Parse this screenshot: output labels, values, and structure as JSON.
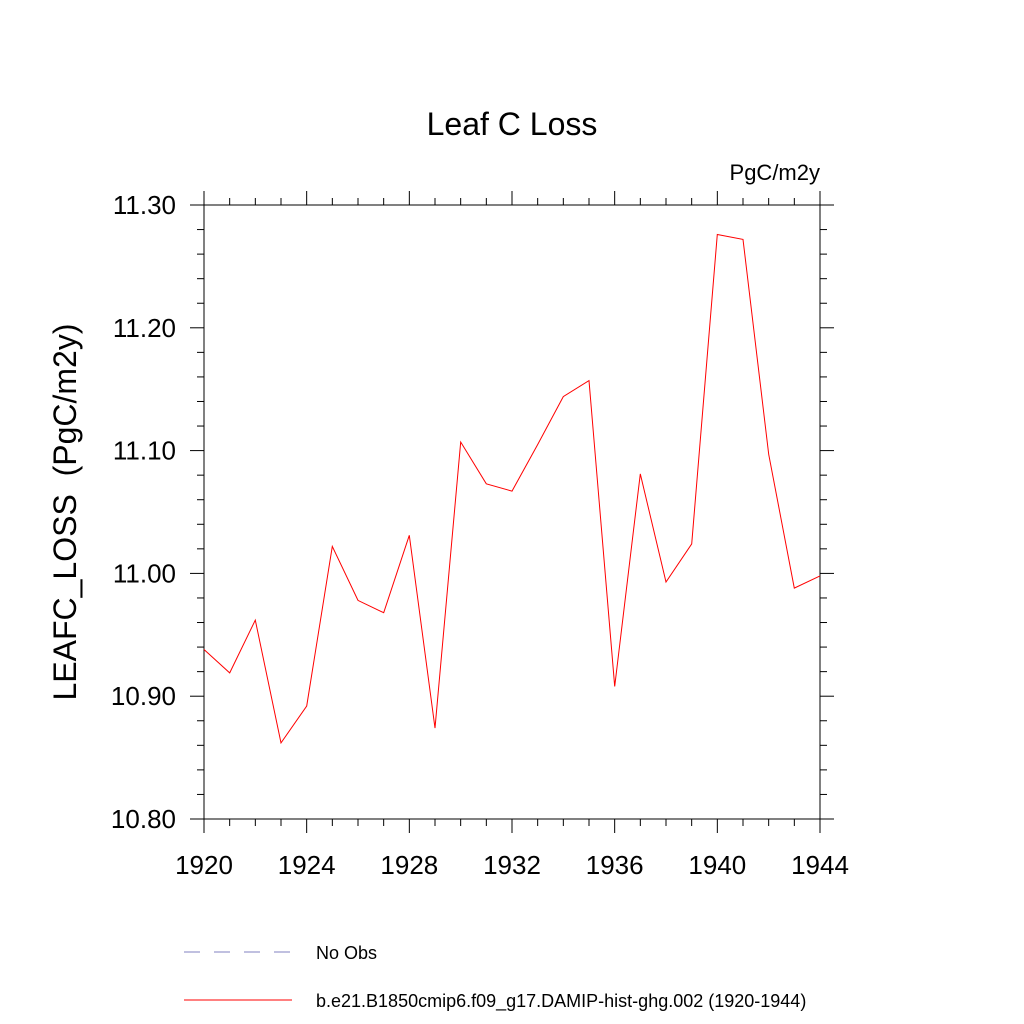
{
  "chart_data": {
    "type": "line",
    "title": "Leaf C Loss",
    "units_label": "PgC/m2y",
    "ylabel": "LEAFC_LOSS  (PgC/m2y)",
    "xlabel": "",
    "xlim": [
      1920,
      1944
    ],
    "ylim": [
      10.8,
      11.3
    ],
    "x_ticks": [
      1920,
      1924,
      1928,
      1932,
      1936,
      1940,
      1944
    ],
    "x_tick_labels": [
      "1920",
      "1924",
      "1928",
      "1932",
      "1936",
      "1940",
      "1944"
    ],
    "y_ticks": [
      10.8,
      10.9,
      11.0,
      11.1,
      11.2,
      11.3
    ],
    "y_tick_labels": [
      "10.80",
      "10.90",
      "11.00",
      "11.10",
      "11.20",
      "11.30"
    ],
    "grid": false,
    "legend_position": "bottom",
    "series": [
      {
        "name": "b.e21.B1850cmip6.f09_g17.DAMIP-hist-ghg.002 (1920-1944)",
        "color": "#ff0000",
        "style": "solid",
        "x": [
          1920,
          1921,
          1922,
          1923,
          1924,
          1925,
          1926,
          1927,
          1928,
          1929,
          1930,
          1931,
          1932,
          1933,
          1934,
          1935,
          1936,
          1937,
          1938,
          1939,
          1940,
          1941,
          1942,
          1943,
          1944
        ],
        "values": [
          10.938,
          10.919,
          10.962,
          10.862,
          10.892,
          11.022,
          10.978,
          10.968,
          11.031,
          10.874,
          11.107,
          11.073,
          11.067,
          11.105,
          11.144,
          11.157,
          10.908,
          11.081,
          10.993,
          11.024,
          11.276,
          11.272,
          11.097,
          10.988,
          10.998
        ]
      }
    ],
    "legend": [
      {
        "label": "No Obs",
        "color": "#8080c0",
        "style": "dashed"
      },
      {
        "label": "b.e21.B1850cmip6.f09_g17.DAMIP-hist-ghg.002 (1920-1944)",
        "color": "#ff0000",
        "style": "solid"
      }
    ]
  }
}
